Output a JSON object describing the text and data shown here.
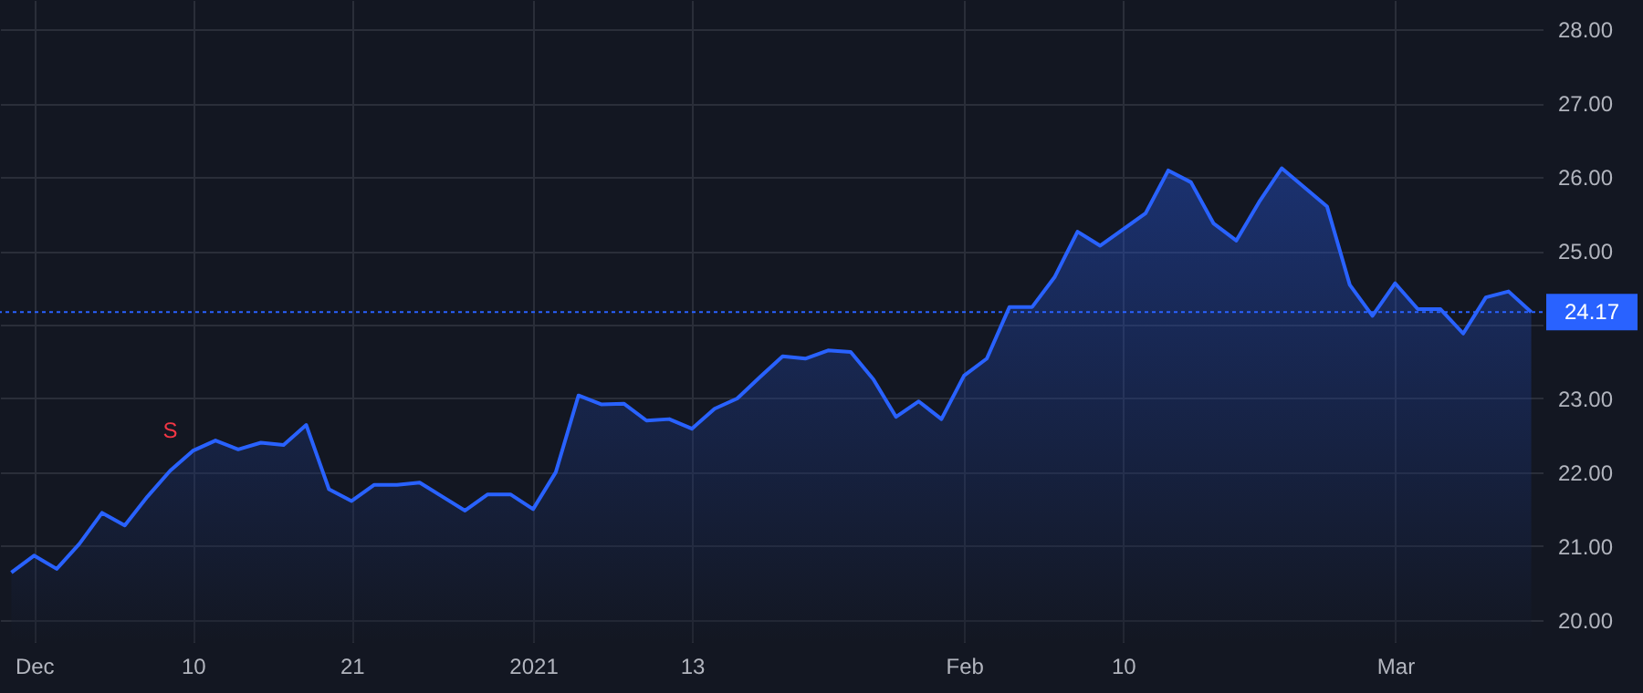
{
  "chart_data": {
    "type": "area",
    "categories": [
      null,
      "Dec",
      null,
      null,
      null,
      null,
      null,
      null,
      "10",
      null,
      null,
      null,
      null,
      null,
      null,
      "21",
      null,
      null,
      null,
      null,
      null,
      null,
      null,
      "2021",
      null,
      null,
      null,
      null,
      null,
      null,
      "13",
      null,
      null,
      null,
      null,
      null,
      null,
      null,
      null,
      null,
      null,
      null,
      "Feb",
      null,
      null,
      null,
      null,
      null,
      null,
      "10",
      null,
      null,
      null,
      null,
      null,
      null,
      null,
      null,
      null,
      null,
      null,
      "Mar",
      null,
      null,
      null,
      null,
      null,
      null
    ],
    "series": [
      {
        "color": "#2962ff",
        "values": [
          20.64,
          20.87,
          20.69,
          21.03,
          21.45,
          21.28,
          21.67,
          22.02,
          22.29,
          22.43,
          22.31,
          22.4,
          22.37,
          22.64,
          21.77,
          21.61,
          21.83,
          21.83,
          21.86,
          21.67,
          21.48,
          21.7,
          21.7,
          21.5,
          22.0,
          23.04,
          22.92,
          22.93,
          22.7,
          22.72,
          22.59,
          22.86,
          23.0,
          23.29,
          23.57,
          23.54,
          23.65,
          23.63,
          23.26,
          22.75,
          22.96,
          22.72,
          23.31,
          23.54,
          24.24,
          24.24,
          24.65,
          25.26,
          25.07,
          25.29,
          25.51,
          26.09,
          25.93,
          25.37,
          25.14,
          25.66,
          26.12,
          25.86,
          25.6,
          24.54,
          24.12,
          24.56,
          24.21,
          24.21,
          23.88,
          24.37,
          24.45,
          24.17
        ]
      }
    ],
    "ylim": [
      19.7,
      28.4
    ],
    "yticks": [
      {
        "value": 20,
        "label": "20.00"
      },
      {
        "value": 21,
        "label": "21.00"
      },
      {
        "value": 22,
        "label": "22.00"
      },
      {
        "value": 23,
        "label": "23.00"
      },
      {
        "value": 24,
        "label": null
      },
      {
        "value": 25,
        "label": "25.00"
      },
      {
        "value": 26,
        "label": "26.00"
      },
      {
        "value": 27,
        "label": "27.00"
      },
      {
        "value": 28,
        "label": "28.00"
      }
    ],
    "ref_lines": [
      {
        "axis": "y",
        "value": 24.17,
        "label": "24.17",
        "color": "#2962ff",
        "line_style": "dotted"
      }
    ],
    "annotations": [
      {
        "text": "S",
        "y": 22.02
      }
    ],
    "grid": true
  }
}
